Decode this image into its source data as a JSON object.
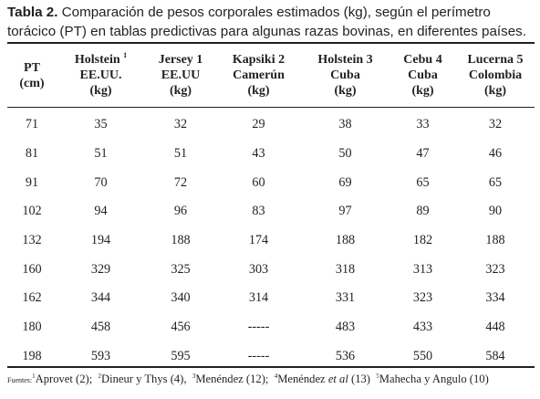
{
  "caption": {
    "label": "Tabla 2.",
    "text": "Comparación de pesos corporales estimados (kg), según el perímetro torácico (PT) en tablas predictivas para algunas razas bovinas, en diferentes países."
  },
  "table": {
    "columns": [
      {
        "lines": [
          "PT",
          "(cm)"
        ]
      },
      {
        "lines": [
          "Holstein",
          "EE.UU.",
          "(kg)"
        ],
        "sup": "1"
      },
      {
        "lines": [
          "Jersey 1",
          "EE.UU",
          "(kg)"
        ]
      },
      {
        "lines": [
          "Kapsiki 2",
          "Camerún",
          "(kg)"
        ]
      },
      {
        "lines": [
          "Holstein 3",
          "Cuba",
          "(kg)"
        ]
      },
      {
        "lines": [
          "Cebu 4",
          "Cuba",
          "(kg)"
        ]
      },
      {
        "lines": [
          "Lucerna 5",
          "Colombia",
          "(kg)"
        ]
      }
    ],
    "rows": [
      [
        "71",
        "35",
        "32",
        "29",
        "38",
        "33",
        "32"
      ],
      [
        "81",
        "51",
        "51",
        "43",
        "50",
        "47",
        "46"
      ],
      [
        "91",
        "70",
        "72",
        "60",
        "69",
        "65",
        "65"
      ],
      [
        "102",
        "94",
        "96",
        "83",
        "97",
        "89",
        "90"
      ],
      [
        "132",
        "194",
        "188",
        "174",
        "188",
        "182",
        "188"
      ],
      [
        "160",
        "329",
        "325",
        "303",
        "318",
        "313",
        "323"
      ],
      [
        "162",
        "344",
        "340",
        "314",
        "331",
        "323",
        "334"
      ],
      [
        "180",
        "458",
        "456",
        "-----",
        "483",
        "433",
        "448"
      ],
      [
        "198",
        "593",
        "595",
        "-----",
        "536",
        "550",
        "584"
      ]
    ]
  },
  "footer": {
    "lead": "Fuentes:",
    "sources": [
      {
        "sup": "1",
        "text": "Aprovet (2);"
      },
      {
        "sup": "2",
        "text": "Dineur y Thys (4),"
      },
      {
        "sup": "3",
        "text": "Menéndez (12);"
      },
      {
        "sup": "4",
        "text": "Menéndez",
        "italic": "et al",
        "after": "(13)"
      },
      {
        "sup": "5",
        "text": "Mahecha y Angulo (10)"
      }
    ]
  }
}
